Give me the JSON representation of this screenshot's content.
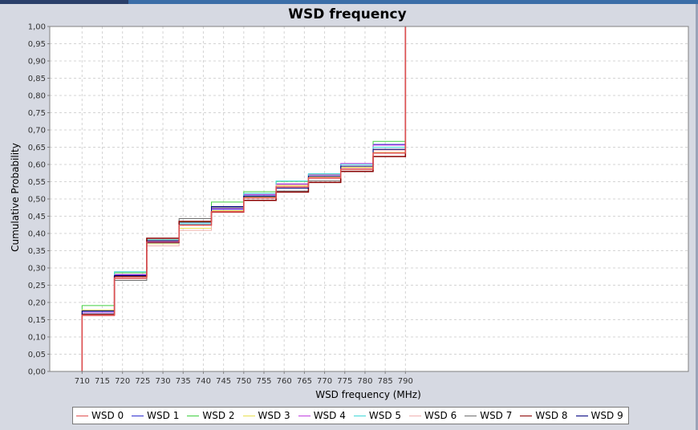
{
  "chart_data": {
    "type": "line",
    "title": "WSD frequency",
    "xlabel": "WSD frequency (MHz)",
    "ylabel": "Cumulative Probability",
    "xlim": [
      702,
      860
    ],
    "ylim": [
      0,
      1
    ],
    "xticks": [
      "710",
      "715",
      "720",
      "725",
      "730",
      "735",
      "740",
      "745",
      "750",
      "755",
      "760",
      "765",
      "770",
      "775",
      "780",
      "785",
      "790"
    ],
    "yticks": [
      "0,00",
      "0,05",
      "0,10",
      "0,15",
      "0,20",
      "0,25",
      "0,30",
      "0,35",
      "0,40",
      "0,45",
      "0,50",
      "0,55",
      "0,60",
      "0,65",
      "0,70",
      "0,75",
      "0,80",
      "0,85",
      "0,90",
      "0,95",
      "1,00"
    ],
    "grid": true,
    "legend_position": "bottom",
    "step_x": [
      710,
      718,
      726,
      734,
      742,
      750,
      758,
      766,
      774,
      782,
      790
    ],
    "series": [
      {
        "name": "WSD 0",
        "color": "#e05050",
        "values": [
          0.163,
          0.271,
          0.375,
          0.424,
          0.463,
          0.503,
          0.535,
          0.561,
          0.586,
          0.633,
          1.0
        ]
      },
      {
        "name": "WSD 1",
        "color": "#3030d0",
        "values": [
          0.174,
          0.279,
          0.378,
          0.432,
          0.47,
          0.512,
          0.543,
          0.572,
          0.6,
          0.658,
          1.0
        ]
      },
      {
        "name": "WSD 2",
        "color": "#40d040",
        "values": [
          0.191,
          0.286,
          0.386,
          0.433,
          0.491,
          0.521,
          0.551,
          0.571,
          0.58,
          0.667,
          1.0
        ]
      },
      {
        "name": "WSD 3",
        "color": "#e8e050",
        "values": [
          0.178,
          0.277,
          0.37,
          0.415,
          0.466,
          0.505,
          0.539,
          0.563,
          0.592,
          0.635,
          1.0
        ]
      },
      {
        "name": "WSD 4",
        "color": "#c040e0",
        "values": [
          0.17,
          0.281,
          0.38,
          0.428,
          0.472,
          0.513,
          0.544,
          0.57,
          0.603,
          0.656,
          1.0
        ]
      },
      {
        "name": "WSD 5",
        "color": "#40d8d8",
        "values": [
          0.167,
          0.289,
          0.382,
          0.428,
          0.475,
          0.516,
          0.552,
          0.573,
          0.6,
          0.65,
          1.0
        ]
      },
      {
        "name": "WSD 6",
        "color": "#f0b0b0",
        "values": [
          0.161,
          0.268,
          0.364,
          0.409,
          0.462,
          0.507,
          0.541,
          0.559,
          0.589,
          0.642,
          1.0
        ]
      },
      {
        "name": "WSD 7",
        "color": "#707070",
        "values": [
          0.176,
          0.264,
          0.38,
          0.443,
          0.475,
          0.507,
          0.523,
          0.553,
          0.579,
          0.644,
          1.0
        ]
      },
      {
        "name": "WSD 8",
        "color": "#8b0000",
        "values": [
          0.165,
          0.276,
          0.386,
          0.435,
          0.462,
          0.496,
          0.52,
          0.548,
          0.58,
          0.623,
          1.0
        ]
      },
      {
        "name": "WSD 9",
        "color": "#000080",
        "values": [
          0.175,
          0.278,
          0.373,
          0.425,
          0.478,
          0.508,
          0.531,
          0.566,
          0.595,
          0.644,
          1.0
        ]
      }
    ]
  }
}
